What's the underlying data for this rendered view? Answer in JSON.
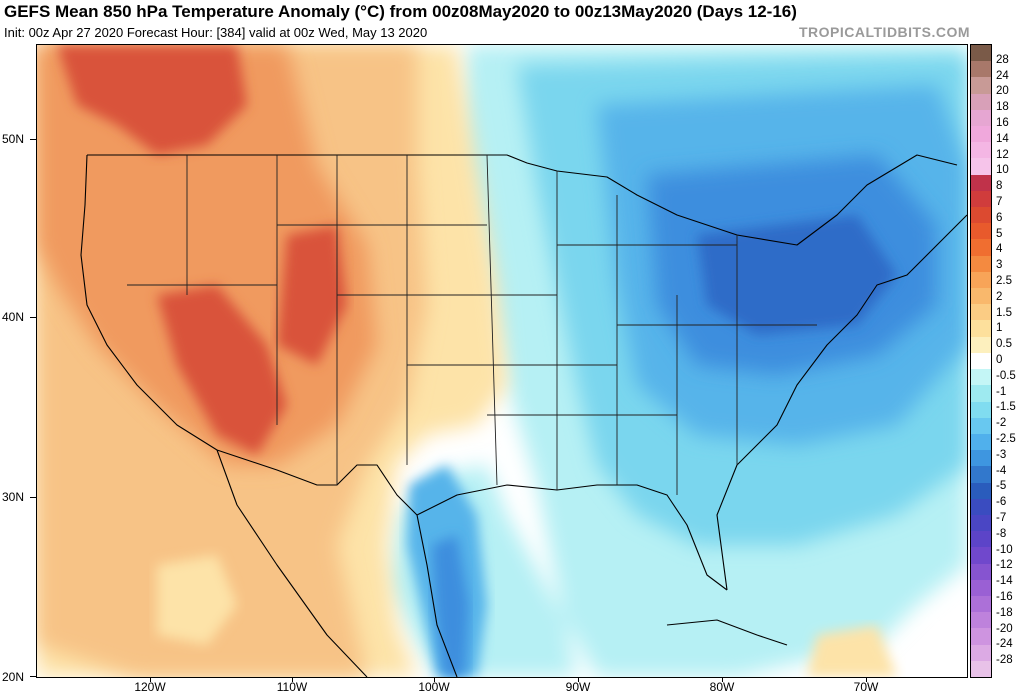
{
  "title": "GEFS Mean 850 hPa Temperature Anomaly (°C) from 00z08May2020 to 00z13May2020 (Days 12-16)",
  "subtitle": "Init: 00z Apr 27 2020   Forecast Hour: [384]   valid at 00z Wed, May 13 2020",
  "credit": "TROPICALTIDBITS.COM",
  "lat_labels": [
    "50N",
    "40N",
    "30N",
    "20N"
  ],
  "lon_labels": [
    "120W",
    "110W",
    "100W",
    "90W",
    "80W",
    "70W"
  ],
  "colorbar": {
    "labels": [
      "28",
      "24",
      "20",
      "18",
      "16",
      "14",
      "12",
      "10",
      "8",
      "7",
      "6",
      "5",
      "4",
      "3",
      "2.5",
      "2",
      "1.5",
      "1",
      "0.5",
      "0",
      "-0.5",
      "-1",
      "-1.5",
      "-2",
      "-2.5",
      "-3",
      "-4",
      "-5",
      "-6",
      "-7",
      "-8",
      "-10",
      "-12",
      "-14",
      "-16",
      "-18",
      "-20",
      "-24",
      "-28"
    ],
    "colors": [
      "#7a5a48",
      "#a8786a",
      "#c89a96",
      "#d8a0b8",
      "#e6a6d2",
      "#f0a8dc",
      "#f4b6e4",
      "#f6c4ea",
      "#c0324a",
      "#d03c3c",
      "#dc4a30",
      "#e85a2c",
      "#f06e30",
      "#f48a40",
      "#f8a458",
      "#f9b86c",
      "#fbcc84",
      "#fde09c",
      "#fdf0be",
      "#ffffff",
      "#c4f6f6",
      "#9eeaf0",
      "#80dcf0",
      "#68c8f0",
      "#50b0ec",
      "#3e96e0",
      "#3278cc",
      "#2a5cbc",
      "#3a4cc0",
      "#4a46c4",
      "#5c44c8",
      "#7048cc",
      "#8654d0",
      "#9a60d4",
      "#ac70d8",
      "#be82dc",
      "#ce94e0",
      "#dcaae4",
      "#e8c2e8"
    ]
  },
  "map": {
    "colors": {
      "warm_strong": "#d9533a",
      "warm_mid": "#f09a5e",
      "warm_light": "#f7c386",
      "warm_pale": "#fde3a8",
      "neutral": "#ffffff",
      "cool_pale": "#b6f0f4",
      "cool_light": "#7ad6ee",
      "cool_mid": "#56b4ea",
      "cool_strong": "#3e8ede",
      "cool_deep": "#2e6cc8"
    }
  }
}
